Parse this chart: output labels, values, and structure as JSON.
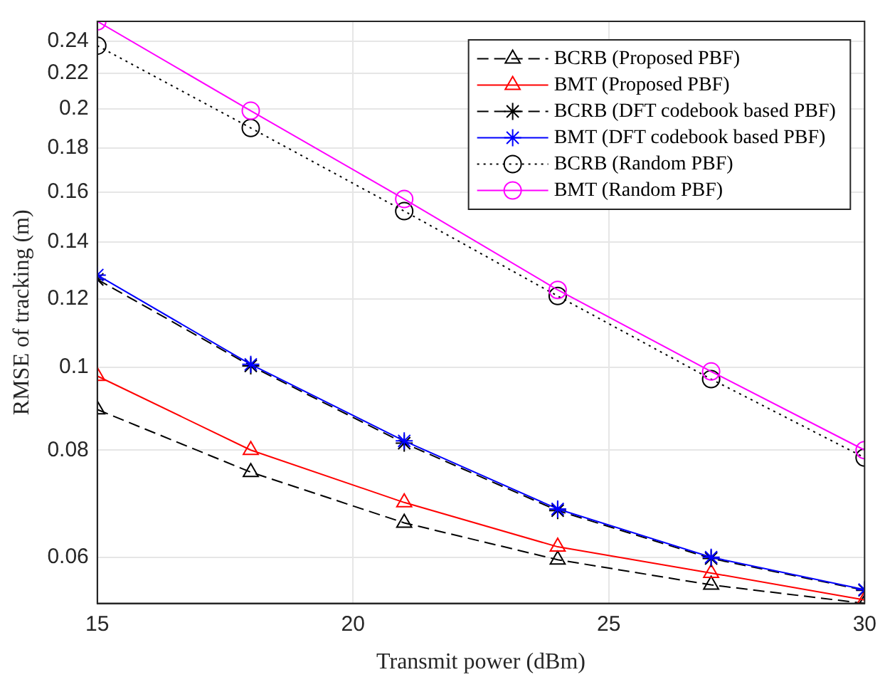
{
  "chart_data": {
    "type": "line",
    "xlabel": "Transmit power (dBm)",
    "ylabel": "RMSE of tracking (m)",
    "x": [
      15,
      18,
      21,
      24,
      27,
      30
    ],
    "xlim": [
      15,
      30
    ],
    "xticks": [
      15,
      20,
      25,
      30
    ],
    "ylim": [
      0.053,
      0.253
    ],
    "yticks": [
      0.06,
      0.08,
      0.1,
      0.12,
      0.14,
      0.16,
      0.18,
      0.2,
      0.22,
      0.24
    ],
    "log": "y",
    "grid": true,
    "legend": "top right",
    "series": [
      {
        "name": "BCRB (Proposed PBF)",
        "color": "#000000",
        "marker": "triangle",
        "line_style": "dashed",
        "values": [
          0.0892,
          0.0754,
          0.0658,
          0.0596,
          0.0557,
          0.053
        ]
      },
      {
        "name": "BMT (Proposed PBF)",
        "color": "#ff0000",
        "marker": "triangle",
        "line_style": "solid",
        "values": [
          0.0976,
          0.08,
          0.0695,
          0.0617,
          0.0575,
          0.0535
        ]
      },
      {
        "name": "BCRB (DFT codebook based PBF)",
        "color": "#000000",
        "marker": "cross",
        "line_style": "dashed",
        "values": [
          0.1265,
          0.1003,
          0.0815,
          0.068,
          0.0598,
          0.0549
        ]
      },
      {
        "name": "BMT (DFT codebook based PBF)",
        "color": "#0000ff",
        "marker": "cross",
        "line_style": "solid",
        "values": [
          0.128,
          0.1007,
          0.082,
          0.0683,
          0.06,
          0.055
        ]
      },
      {
        "name": "BCRB (Random PBF)",
        "color": "#000000",
        "marker": "circle",
        "line_style": "dotted",
        "values": [
          0.237,
          0.19,
          0.152,
          0.121,
          0.0968,
          0.0784
        ]
      },
      {
        "name": "BMT (Random PBF)",
        "color": "#ff00ff",
        "marker": "circle",
        "line_style": "solid",
        "values": [
          0.253,
          0.199,
          0.157,
          0.123,
          0.0988,
          0.08
        ]
      }
    ]
  }
}
